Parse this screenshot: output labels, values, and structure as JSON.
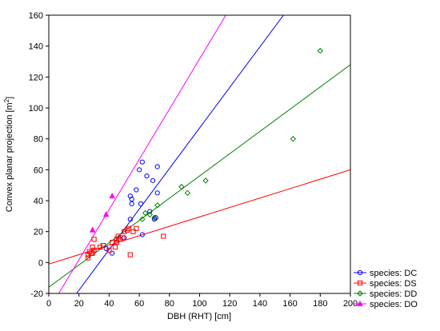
{
  "chart_data": {
    "type": "scatter",
    "xlabel": "DBH (RHT) [cm]",
    "ylabel": "Convex planar projection [m",
    "ylabel_superscript": "2",
    "ylabel_suffix": "]",
    "xlim": [
      0,
      200
    ],
    "ylim": [
      -20,
      160
    ],
    "x_ticks": [
      "0",
      "20",
      "40",
      "60",
      "80",
      "100",
      "120",
      "140",
      "160",
      "180",
      "200"
    ],
    "y_ticks": [
      "-20",
      "0",
      "20",
      "40",
      "60",
      "80",
      "100",
      "120",
      "140",
      "160"
    ],
    "grid": false,
    "legend_position": "bottom-right",
    "series": [
      {
        "name": "species: DC",
        "color": "#0000ff",
        "marker": "circle",
        "points": [
          [
            38,
            9
          ],
          [
            42,
            6
          ],
          [
            50,
            16
          ],
          [
            54,
            43
          ],
          [
            54,
            28
          ],
          [
            55,
            41
          ],
          [
            55,
            38
          ],
          [
            58,
            47
          ],
          [
            60,
            60
          ],
          [
            61,
            38
          ],
          [
            62,
            18
          ],
          [
            62,
            65
          ],
          [
            65,
            56
          ],
          [
            67,
            33
          ],
          [
            69,
            53
          ],
          [
            70,
            28
          ],
          [
            71,
            29
          ],
          [
            72,
            45
          ],
          [
            72,
            62
          ]
        ],
        "fit": [
          [
            18.4,
            -20
          ],
          [
            155.6,
            160
          ]
        ]
      },
      {
        "name": "species: DS",
        "color": "#ff0000",
        "marker": "square",
        "points": [
          [
            26,
            5
          ],
          [
            26,
            3
          ],
          [
            27,
            7
          ],
          [
            28,
            6
          ],
          [
            29,
            10
          ],
          [
            29,
            6
          ],
          [
            30,
            15
          ],
          [
            30,
            8
          ],
          [
            34,
            10
          ],
          [
            36,
            11
          ],
          [
            40,
            8
          ],
          [
            42,
            13
          ],
          [
            44,
            10
          ],
          [
            45,
            15
          ],
          [
            45,
            13
          ],
          [
            46,
            17
          ],
          [
            47,
            15
          ],
          [
            49,
            16
          ],
          [
            50,
            20
          ],
          [
            52,
            21
          ],
          [
            53,
            22
          ],
          [
            54,
            5
          ],
          [
            56,
            20
          ],
          [
            58,
            22
          ],
          [
            76,
            17
          ]
        ],
        "fit": [
          [
            0,
            -1
          ],
          [
            200,
            60
          ]
        ]
      },
      {
        "name": "species: DD",
        "color": "#008000",
        "marker": "diamond",
        "points": [
          [
            62,
            28
          ],
          [
            64,
            32
          ],
          [
            67,
            31
          ],
          [
            70,
            29
          ],
          [
            72,
            37
          ],
          [
            88,
            49
          ],
          [
            92,
            45
          ],
          [
            104,
            53
          ],
          [
            162,
            80
          ],
          [
            180,
            137
          ]
        ],
        "fit": [
          [
            0,
            -16
          ],
          [
            200,
            128
          ]
        ]
      },
      {
        "name": "species: DO",
        "color": "#ff00ff",
        "marker": "triangle",
        "points": [
          [
            29,
            21
          ],
          [
            38,
            31
          ],
          [
            42,
            43
          ]
        ],
        "fit": [
          [
            6.6,
            -20
          ],
          [
            117.4,
            160
          ]
        ]
      }
    ]
  }
}
